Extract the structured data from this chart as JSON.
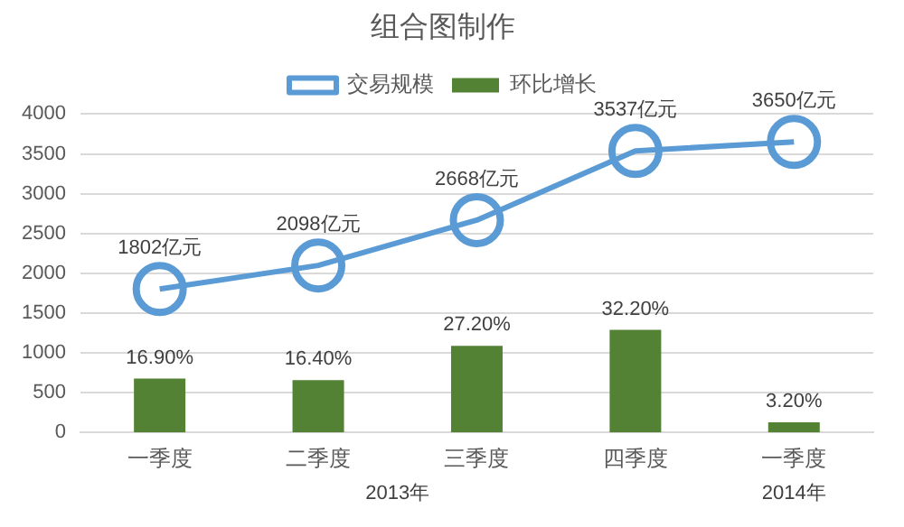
{
  "chart_data": {
    "type": "bar",
    "title": "组合图制作",
    "categories": [
      "一季度",
      "二季度",
      "三季度",
      "四季度",
      "一季度"
    ],
    "series": [
      {
        "name": "环比增长",
        "axis": "y2",
        "color": "#548235",
        "values": [
          16.9,
          16.4,
          27.2,
          32.2,
          3.2
        ],
        "value_labels": [
          "16.90%",
          "16.40%",
          "27.20%",
          "32.20%",
          "3.20%"
        ]
      },
      {
        "name": "交易规模",
        "type": "line",
        "color": "#5b9bd5",
        "marker": "circle",
        "values": [
          1802,
          2098,
          2668,
          3537,
          3650
        ],
        "value_labels": [
          "1802亿元",
          "2098亿元",
          "2668亿元",
          "3537亿元",
          "3650亿元"
        ]
      }
    ],
    "ylim": [
      0,
      4000
    ],
    "y2lim": [
      0,
      100
    ],
    "yticks": [
      0,
      500,
      1000,
      1500,
      2000,
      2500,
      3000,
      3500,
      4000
    ],
    "grid": "y",
    "legend": "top",
    "annotations": [
      "2013年",
      "2014年"
    ]
  }
}
